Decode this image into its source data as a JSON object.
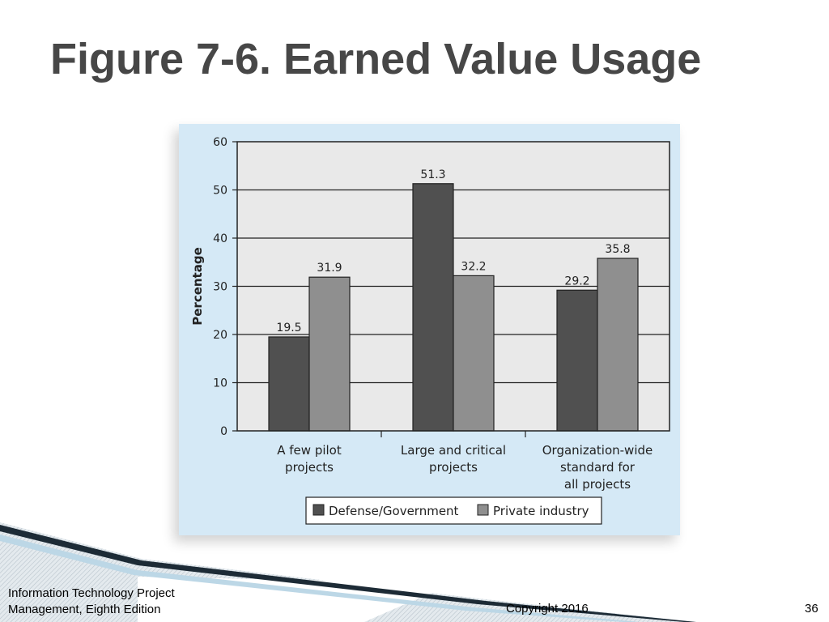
{
  "slide": {
    "title": "Figure 7-6. Earned Value Usage",
    "footer": {
      "source_line1": "Information Technology Project",
      "source_line2": "Management, Eighth Edition",
      "copyright": "Copyright 2016",
      "page_number": "36"
    }
  },
  "colors": {
    "title_text": "#474747",
    "panel_background": "#d5e9f6",
    "plot_background": "#e9e9e9",
    "defense_bar": "#505050",
    "private_bar": "#8f8f8f"
  },
  "chart_data": {
    "type": "bar",
    "title": "",
    "xlabel": "",
    "ylabel": "Percentage",
    "ylim": [
      0,
      60
    ],
    "yticks": [
      0,
      10,
      20,
      30,
      40,
      50,
      60
    ],
    "grid": "horizontal",
    "legend_position": "bottom",
    "categories": [
      [
        "A few pilot",
        "projects"
      ],
      [
        "Large and critical",
        "projects"
      ],
      [
        "Organization-wide",
        "standard for",
        "all projects"
      ]
    ],
    "series": [
      {
        "name": "Defense/Government",
        "color": "#505050",
        "values": [
          19.5,
          51.3,
          29.2
        ]
      },
      {
        "name": "Private industry",
        "color": "#8f8f8f",
        "values": [
          31.9,
          32.2,
          35.8
        ]
      }
    ],
    "data_labels": [
      [
        "19.5",
        "51.3",
        "29.2"
      ],
      [
        "31.9",
        "32.2",
        "35.8"
      ]
    ]
  }
}
